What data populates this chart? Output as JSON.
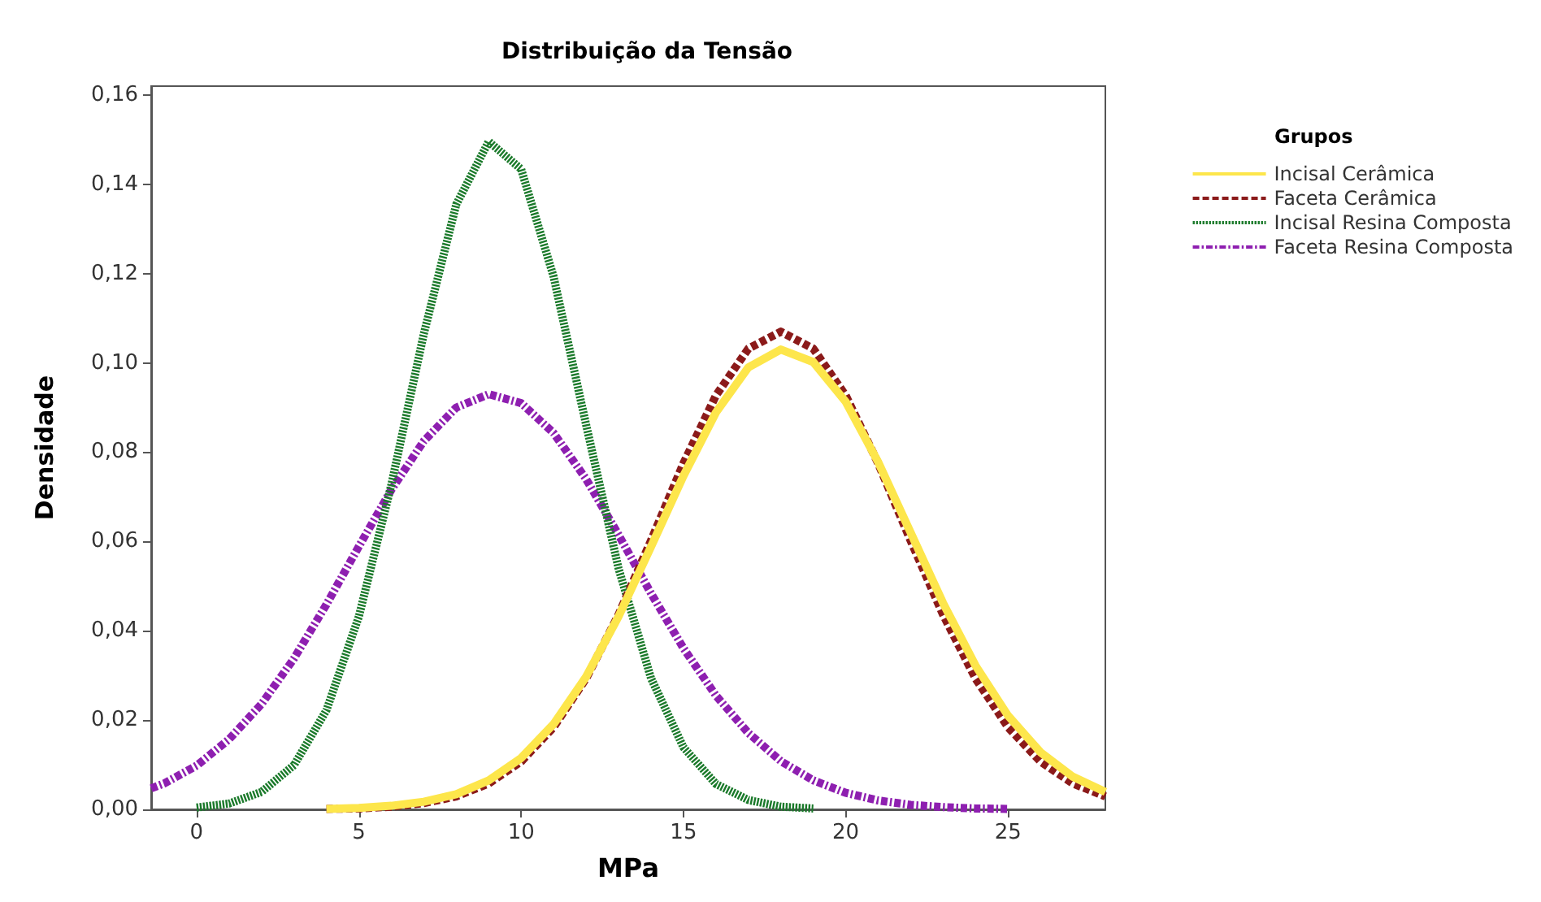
{
  "chart_data": {
    "type": "line",
    "title": "Distribuição da Tensão",
    "xlabel": "MPa",
    "ylabel": "Densidade",
    "legend_title": "Grupos",
    "legend": "top right",
    "grid": false,
    "marker": "none",
    "xlim": [
      -1.4,
      28
    ],
    "xticks": [
      0,
      5,
      10,
      15,
      20,
      25
    ],
    "ylim": [
      0,
      0.162
    ],
    "yticks": [
      {
        "value": 0,
        "label": "0,00"
      },
      {
        "value": 0.02,
        "label": "0,02"
      },
      {
        "value": 0.04,
        "label": "0,04"
      },
      {
        "value": 0.06,
        "label": "0,06"
      },
      {
        "value": 0.08,
        "label": "0,08"
      },
      {
        "value": 0.1,
        "label": "0,10"
      },
      {
        "value": 0.12,
        "label": "0,12"
      },
      {
        "value": 0.14,
        "label": "0,14"
      },
      {
        "value": 0.16,
        "label": "0,16"
      }
    ],
    "series": [
      {
        "name": "Incisal Cerâmica",
        "color": "#fde64b",
        "line_style": "solid",
        "x": [
          4,
          5,
          6,
          7,
          8,
          9,
          10,
          11,
          12,
          13,
          14,
          15,
          16,
          17,
          18,
          19,
          20,
          21,
          22,
          23,
          24,
          25,
          26,
          27,
          28
        ],
        "values": [
          0.0001,
          0.0003,
          0.0008,
          0.0017,
          0.0034,
          0.0065,
          0.0115,
          0.0191,
          0.0297,
          0.0432,
          0.0588,
          0.0747,
          0.0889,
          0.099,
          0.103,
          0.1002,
          0.0913,
          0.0778,
          0.062,
          0.0462,
          0.0322,
          0.021,
          0.0128,
          0.0073,
          0.0039
        ]
      },
      {
        "name": "Faceta Cerâmica",
        "color": "#8b1a1a",
        "line_style": "dashed",
        "x": [
          4,
          5,
          6,
          7,
          8,
          9,
          10,
          11,
          12,
          13,
          14,
          15,
          16,
          17,
          18,
          19,
          20,
          21,
          22,
          23,
          24,
          25,
          26,
          27,
          28
        ],
        "values": [
          0.0001,
          0.0002,
          0.0006,
          0.0014,
          0.0029,
          0.0058,
          0.0107,
          0.0184,
          0.0293,
          0.0436,
          0.0602,
          0.0775,
          0.0927,
          0.1032,
          0.107,
          0.1032,
          0.0927,
          0.0775,
          0.0602,
          0.0436,
          0.0293,
          0.0184,
          0.0107,
          0.0058,
          0.0029
        ]
      },
      {
        "name": "Incisal Resina Composta",
        "color": "#1b7a2b",
        "line_style": "dotted",
        "x": [
          0,
          1,
          2,
          3,
          4,
          5,
          6,
          7,
          8,
          9,
          10,
          11,
          12,
          13,
          14,
          15,
          16,
          17,
          18,
          19
        ],
        "values": [
          0.0004,
          0.0013,
          0.0039,
          0.0099,
          0.0222,
          0.0432,
          0.0727,
          0.1065,
          0.1355,
          0.1496,
          0.1434,
          0.1193,
          0.0862,
          0.054,
          0.0294,
          0.0139,
          0.0057,
          0.0021,
          0.0006,
          0.0002
        ]
      },
      {
        "name": "Faceta Resina Composta",
        "color": "#8e1fb0",
        "line_style": "dashdot",
        "x": [
          -1.4,
          -1,
          0,
          1,
          2,
          3,
          4,
          5,
          6,
          7,
          8,
          9,
          10,
          11,
          12,
          13,
          14,
          15,
          16,
          17,
          18,
          19,
          20,
          21,
          22,
          23,
          24,
          25
        ],
        "values": [
          0.0047,
          0.0058,
          0.0098,
          0.0157,
          0.0236,
          0.0338,
          0.0459,
          0.0589,
          0.0716,
          0.0825,
          0.09,
          0.093,
          0.091,
          0.0843,
          0.074,
          0.0615,
          0.0484,
          0.0361,
          0.0255,
          0.0171,
          0.0108,
          0.0065,
          0.0037,
          0.002,
          0.001,
          0.0005,
          0.0002,
          0.0001
        ]
      }
    ]
  }
}
